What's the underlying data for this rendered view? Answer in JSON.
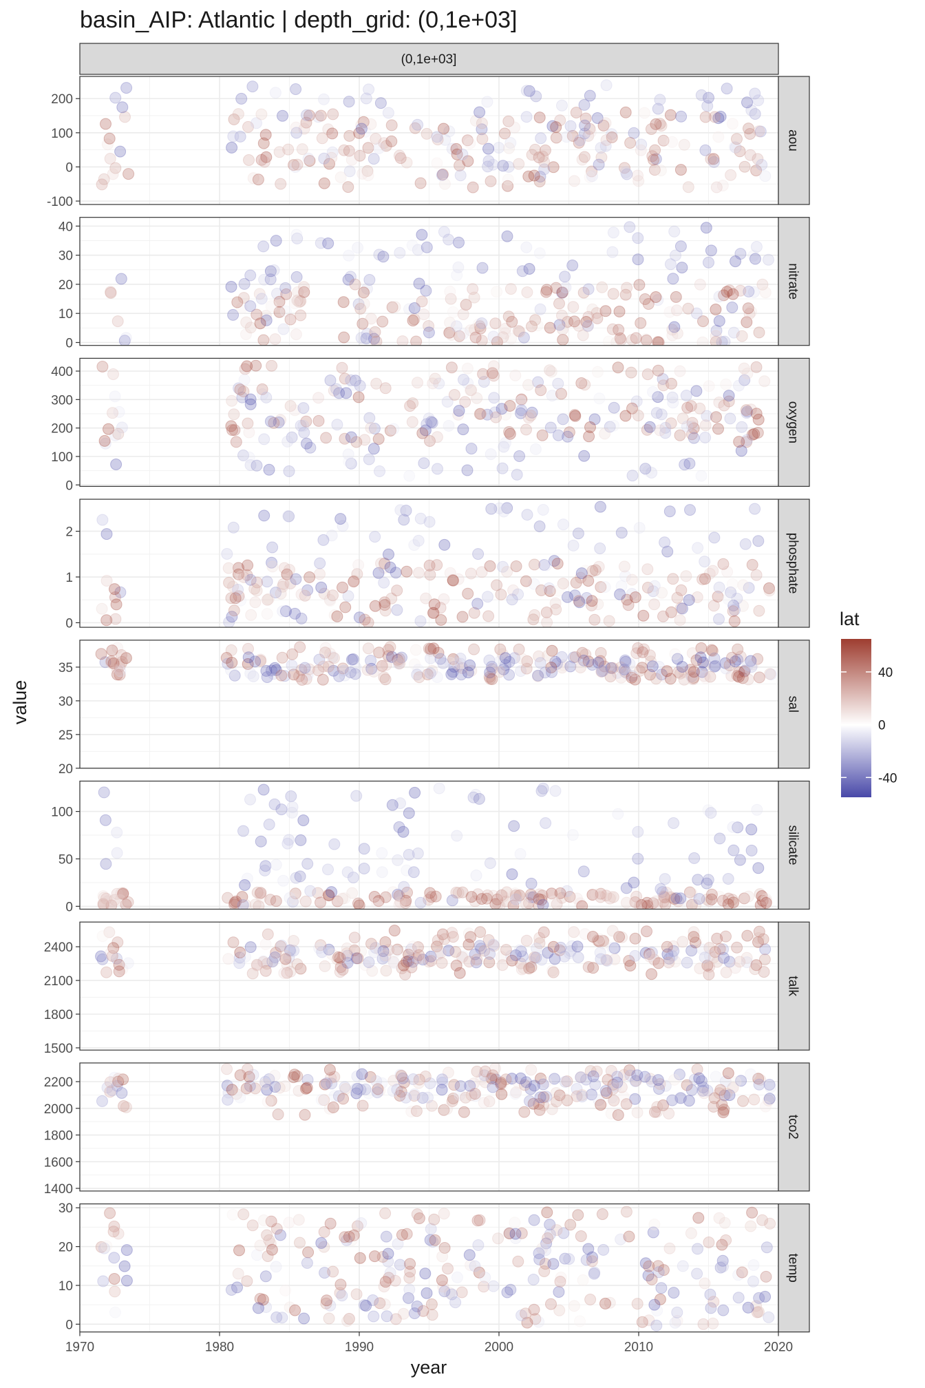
{
  "chart_data": {
    "type": "scatter",
    "title": "basin_AIP: Atlantic | depth_grid: (0,1e+03]",
    "facet_column_label": "(0,1e+03]",
    "xlabel": "year",
    "ylabel": "value",
    "xlim": [
      1970,
      2020
    ],
    "x_ticks": [
      1970,
      1980,
      1990,
      2000,
      2010,
      2020
    ],
    "x_coverage": [
      [
        1971.5,
        1973.5
      ],
      [
        1980.5,
        1986.5
      ],
      [
        1987,
        2019.5
      ]
    ],
    "color_legend": {
      "title": "lat",
      "range": [
        -55,
        65
      ],
      "ticks": [
        40,
        0,
        -40
      ],
      "low_color": "#4848a8",
      "mid_color": "#ffffff",
      "high_color": "#9e3d30"
    },
    "panels": [
      {
        "name": "aou",
        "ylim": [
          -110,
          265
        ],
        "ticks": [
          200,
          100,
          0,
          -100
        ],
        "north_range": [
          -60,
          160
        ],
        "south_range": [
          -30,
          240
        ]
      },
      {
        "name": "nitrate",
        "ylim": [
          -1,
          43
        ],
        "ticks": [
          40,
          30,
          20,
          10,
          0
        ],
        "north_range": [
          0,
          20
        ],
        "south_range": [
          0,
          40
        ]
      },
      {
        "name": "oxygen",
        "ylim": [
          -5,
          445
        ],
        "ticks": [
          400,
          300,
          200,
          100,
          0
        ],
        "north_range": [
          150,
          420
        ],
        "south_range": [
          30,
          380
        ]
      },
      {
        "name": "phosphate",
        "ylim": [
          -0.1,
          2.7
        ],
        "ticks": [
          2,
          1,
          0
        ],
        "north_range": [
          0,
          1.3
        ],
        "south_range": [
          0,
          2.6
        ]
      },
      {
        "name": "sal",
        "ylim": [
          20,
          39
        ],
        "ticks": [
          35,
          30,
          25,
          20
        ],
        "north_range": [
          33,
          38
        ],
        "south_range": [
          33.5,
          36.5
        ]
      },
      {
        "name": "silicate",
        "ylim": [
          -3,
          132
        ],
        "ticks": [
          100,
          50,
          0
        ],
        "north_range": [
          0,
          15
        ],
        "south_range": [
          0,
          125
        ]
      },
      {
        "name": "talk",
        "ylim": [
          1480,
          2620
        ],
        "ticks": [
          2400,
          2100,
          1800,
          1500
        ],
        "north_range": [
          2150,
          2550
        ],
        "south_range": [
          2250,
          2420
        ]
      },
      {
        "name": "tco2",
        "ylim": [
          1380,
          2340
        ],
        "ticks": [
          2200,
          2000,
          1800,
          1600,
          1400
        ],
        "north_range": [
          1950,
          2300
        ],
        "south_range": [
          2050,
          2260
        ]
      },
      {
        "name": "temp",
        "ylim": [
          -2,
          31
        ],
        "ticks": [
          30,
          20,
          10,
          0
        ],
        "north_range": [
          0,
          29
        ],
        "south_range": [
          -1,
          27
        ]
      }
    ]
  }
}
